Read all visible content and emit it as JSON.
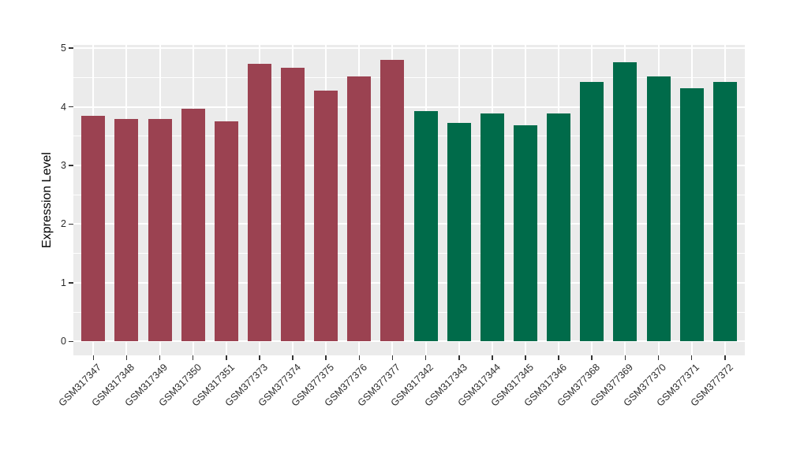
{
  "figure": {
    "background_color": "#FFFFFF",
    "panel_background_color": "#EBEBEB",
    "gridline_color": "#FFFFFF",
    "axis_tick_color": "#333333",
    "axis_text_color": "#2B2B2B",
    "axis_title_color": "#000000"
  },
  "chart_data": {
    "type": "bar",
    "title": "",
    "xlabel": "",
    "ylabel": "Expression Level",
    "ylim": [
      0,
      5
    ],
    "yticks": [
      0,
      1,
      2,
      3,
      4,
      5
    ],
    "grid": "white major gridlines at integers, white minor gridlines at halves, vertical white gridlines at each category center",
    "legend_position": "none",
    "categories": [
      "GSM317347",
      "GSM317348",
      "GSM317349",
      "GSM317350",
      "GSM317351",
      "GSM377373",
      "GSM377374",
      "GSM377375",
      "GSM377376",
      "GSM377377",
      "GSM317342",
      "GSM317343",
      "GSM317344",
      "GSM317345",
      "GSM317346",
      "GSM377368",
      "GSM377369",
      "GSM377370",
      "GSM377371",
      "GSM377372"
    ],
    "values": [
      3.85,
      3.79,
      3.79,
      3.97,
      3.75,
      4.73,
      4.67,
      4.27,
      4.52,
      4.8,
      3.93,
      3.72,
      3.89,
      3.69,
      3.88,
      4.43,
      4.76,
      4.52,
      4.32,
      4.43
    ],
    "bar_colors": [
      "#9B4251",
      "#9B4251",
      "#9B4251",
      "#9B4251",
      "#9B4251",
      "#9B4251",
      "#9B4251",
      "#9B4251",
      "#9B4251",
      "#9B4251",
      "#006B4A",
      "#006B4A",
      "#006B4A",
      "#006B4A",
      "#006B4A",
      "#006B4A",
      "#006B4A",
      "#006B4A",
      "#006B4A",
      "#006B4A"
    ]
  }
}
